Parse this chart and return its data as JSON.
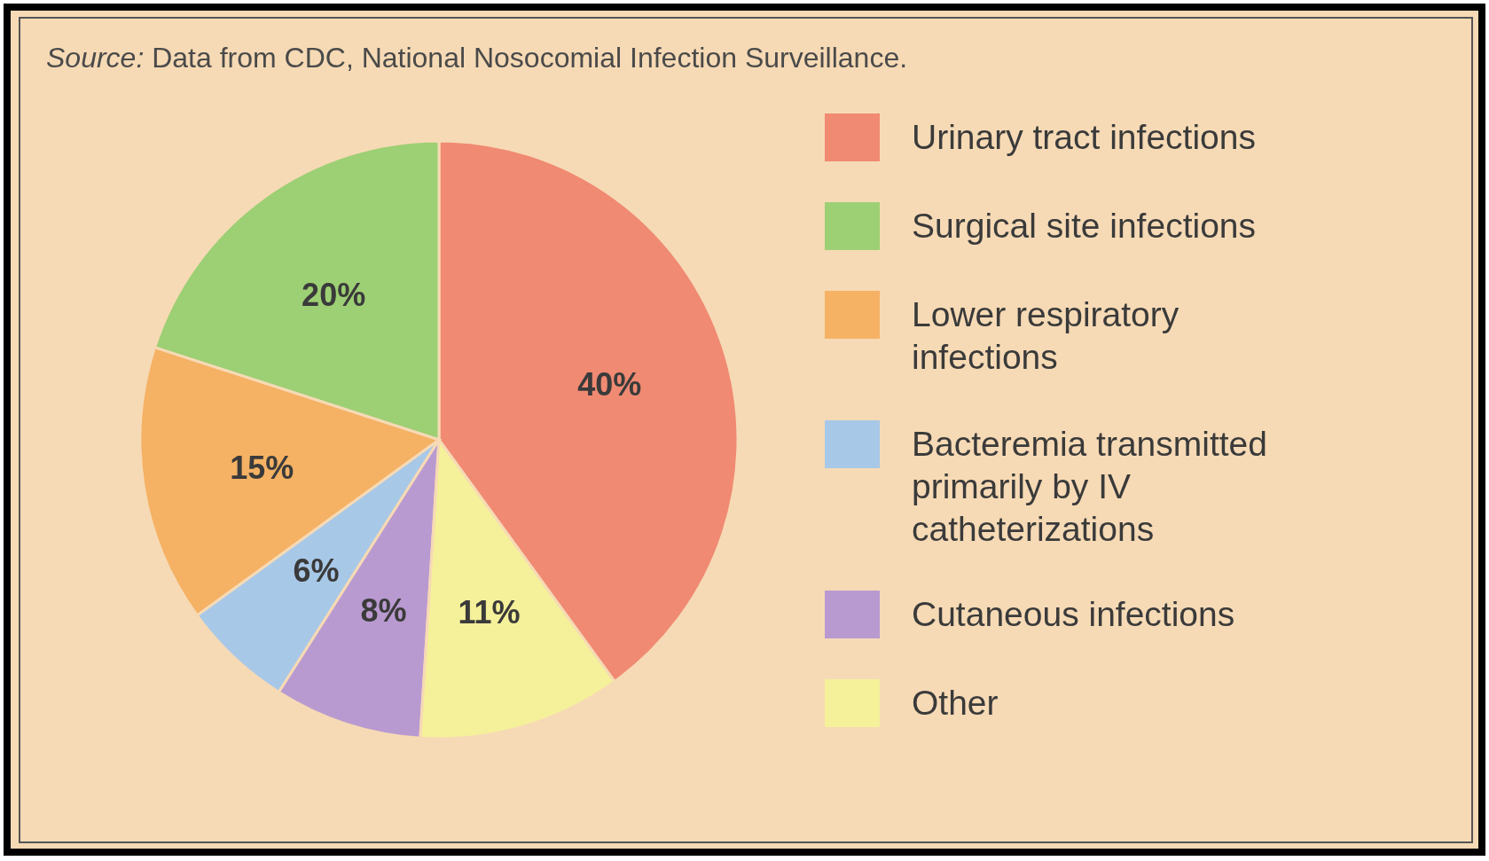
{
  "chart_data": {
    "type": "pie",
    "categories": [
      "Urinary tract infections",
      "Surgical site infections",
      "Lower respiratory infections",
      "Bacteremia transmitted primarily by IV catheterizations",
      "Cutaneous infections",
      "Other"
    ],
    "values": [
      40,
      20,
      15,
      6,
      8,
      11
    ],
    "colors": [
      "#f08a72",
      "#9dcf74",
      "#f5b164",
      "#a8c8e8",
      "#b99ad0",
      "#f5f09a"
    ],
    "value_labels": [
      "40%",
      "20%",
      "15%",
      "6%",
      "8%",
      "11%"
    ],
    "legend": "right",
    "annotations": [
      "Source: Data from CDC, National Nosocomial Infection Surveillance."
    ]
  }
}
